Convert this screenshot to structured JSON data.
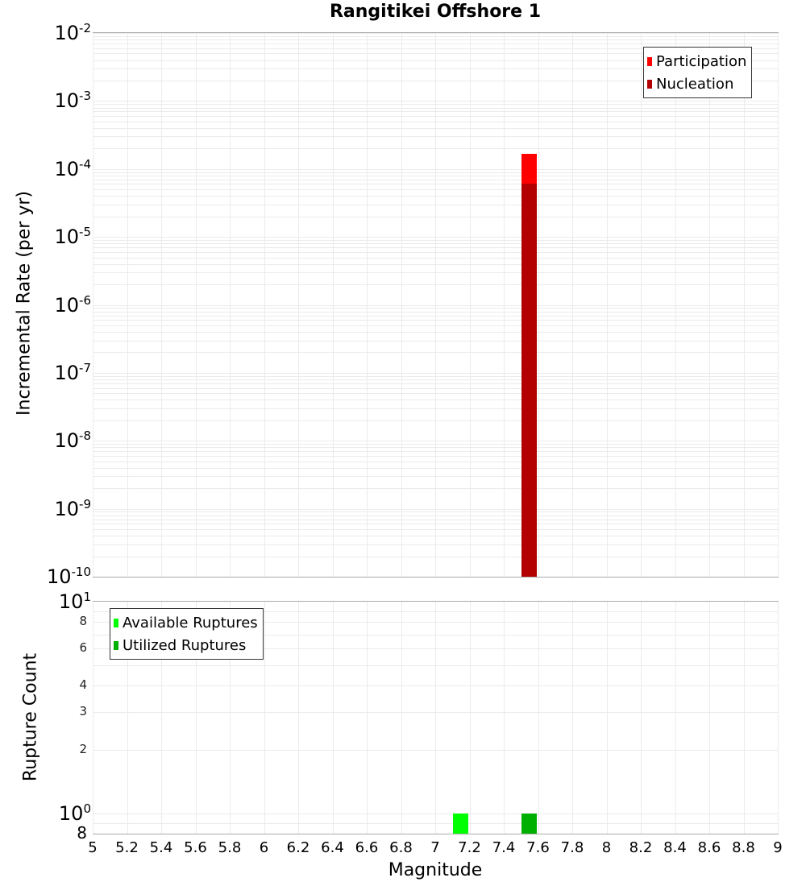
{
  "title": "Rangitikei Offshore 1",
  "colors": {
    "participation": "#ff0000",
    "nucleation": "#b30000",
    "available": "#00ff00",
    "utilized": "#00b000",
    "grid": "#ebebeb",
    "frame": "#aaaaaa"
  },
  "top_plot": {
    "ylabel": "Incremental Rate (per yr)",
    "yticks": [
      {
        "base": "10",
        "exp": "-2"
      },
      {
        "base": "10",
        "exp": "-3"
      },
      {
        "base": "10",
        "exp": "-4"
      },
      {
        "base": "10",
        "exp": "-5"
      },
      {
        "base": "10",
        "exp": "-6"
      },
      {
        "base": "10",
        "exp": "-7"
      },
      {
        "base": "10",
        "exp": "-8"
      },
      {
        "base": "10",
        "exp": "-9"
      },
      {
        "base": "10",
        "exp": "-10"
      }
    ],
    "legend": [
      "Participation",
      "Nucleation"
    ]
  },
  "bottom_plot": {
    "ylabel": "Rupture Count",
    "yticks_major": [
      {
        "base": "10",
        "exp": "1"
      },
      {
        "base": "10",
        "exp": "0"
      }
    ],
    "yticks_minor": [
      "8",
      "6",
      "4",
      "3",
      "2"
    ],
    "ytick_bottom": "8",
    "legend": [
      "Available Ruptures",
      "Utilized Ruptures"
    ]
  },
  "xaxis": {
    "label": "Magnitude",
    "ticks": [
      "5",
      "5.2",
      "5.4",
      "5.6",
      "5.8",
      "6",
      "6.2",
      "6.4",
      "6.6",
      "6.8",
      "7",
      "7.2",
      "7.4",
      "7.6",
      "7.8",
      "8",
      "8.2",
      "8.4",
      "8.6",
      "8.8",
      "9"
    ]
  },
  "chart_data": [
    {
      "type": "bar",
      "title": "Rangitikei Offshore 1",
      "xlabel": "Magnitude",
      "ylabel": "Incremental Rate (per yr)",
      "yscale": "log",
      "xlim": [
        5,
        9
      ],
      "ylim": [
        1e-10,
        0.01
      ],
      "grid": true,
      "legend_position": "top-right",
      "series": [
        {
          "name": "Participation",
          "color": "#ff0000",
          "x": [
            7.55
          ],
          "values": [
            0.000166
          ]
        },
        {
          "name": "Nucleation",
          "color": "#b30000",
          "x": [
            7.55
          ],
          "values": [
            6.1e-05
          ]
        }
      ]
    },
    {
      "type": "bar",
      "xlabel": "Magnitude",
      "ylabel": "Rupture Count",
      "yscale": "log",
      "xlim": [
        5,
        9
      ],
      "ylim": [
        0.8,
        10
      ],
      "grid": true,
      "legend_position": "top-left",
      "series": [
        {
          "name": "Available Ruptures",
          "color": "#00ff00",
          "x": [
            7.15
          ],
          "values": [
            1
          ]
        },
        {
          "name": "Utilized Ruptures",
          "color": "#00b000",
          "x": [
            7.55
          ],
          "values": [
            1
          ]
        }
      ]
    }
  ]
}
